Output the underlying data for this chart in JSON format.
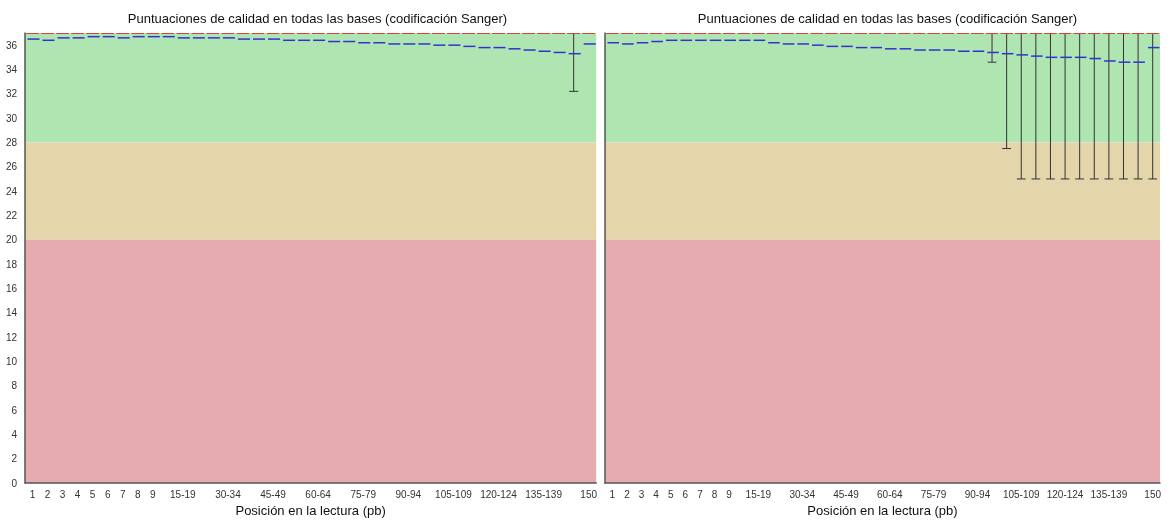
{
  "chart_data": [
    {
      "type": "box",
      "title": "Puntuaciones de calidad en todas las bases (codificación Sanger)",
      "xlabel": "Posición en la lectura (pb)",
      "categories": [
        "1",
        "2",
        "3",
        "4",
        "5",
        "6",
        "7",
        "8",
        "9",
        null,
        "15-19",
        null,
        null,
        "30-34",
        null,
        null,
        "45-49",
        null,
        null,
        "60-64",
        null,
        null,
        "75-79",
        null,
        null,
        "90-94",
        null,
        null,
        "105-109",
        null,
        null,
        "120-124",
        null,
        null,
        "135-139",
        null,
        null,
        "150"
      ],
      "ylim": [
        0,
        37
      ],
      "yticks": [
        0,
        2,
        4,
        6,
        8,
        10,
        12,
        14,
        16,
        18,
        20,
        22,
        24,
        26,
        28,
        30,
        32,
        34,
        36
      ],
      "grid": false,
      "bands": [
        {
          "axis": "y",
          "from": 28,
          "to": 37,
          "color": "#afe5b0"
        },
        {
          "axis": "y",
          "from": 20,
          "to": 28,
          "color": "#e5d5ab"
        },
        {
          "axis": "y",
          "from": 0,
          "to": 20,
          "color": "#e6abae"
        }
      ],
      "boxes": [
        {
          "low": 37,
          "q1": 37,
          "median": 37,
          "q3": 37,
          "high": 37,
          "mean": 36.5
        },
        {
          "low": 37,
          "q1": 37,
          "median": 37,
          "q3": 37,
          "high": 37,
          "mean": 36.4
        },
        {
          "low": 37,
          "q1": 37,
          "median": 37,
          "q3": 37,
          "high": 37,
          "mean": 36.6
        },
        {
          "low": 37,
          "q1": 37,
          "median": 37,
          "q3": 37,
          "high": 37,
          "mean": 36.6
        },
        {
          "low": 37,
          "q1": 37,
          "median": 37,
          "q3": 37,
          "high": 37,
          "mean": 36.7
        },
        {
          "low": 37,
          "q1": 37,
          "median": 37,
          "q3": 37,
          "high": 37,
          "mean": 36.7
        },
        {
          "low": 37,
          "q1": 37,
          "median": 37,
          "q3": 37,
          "high": 37,
          "mean": 36.6
        },
        {
          "low": 37,
          "q1": 37,
          "median": 37,
          "q3": 37,
          "high": 37,
          "mean": 36.7
        },
        {
          "low": 37,
          "q1": 37,
          "median": 37,
          "q3": 37,
          "high": 37,
          "mean": 36.7
        },
        {
          "low": 37,
          "q1": 37,
          "median": 37,
          "q3": 37,
          "high": 37,
          "mean": 36.7
        },
        {
          "low": 37,
          "q1": 37,
          "median": 37,
          "q3": 37,
          "high": 37,
          "mean": 36.6
        },
        {
          "low": 37,
          "q1": 37,
          "median": 37,
          "q3": 37,
          "high": 37,
          "mean": 36.6
        },
        {
          "low": 37,
          "q1": 37,
          "median": 37,
          "q3": 37,
          "high": 37,
          "mean": 36.6
        },
        {
          "low": 37,
          "q1": 37,
          "median": 37,
          "q3": 37,
          "high": 37,
          "mean": 36.6
        },
        {
          "low": 37,
          "q1": 37,
          "median": 37,
          "q3": 37,
          "high": 37,
          "mean": 36.5
        },
        {
          "low": 37,
          "q1": 37,
          "median": 37,
          "q3": 37,
          "high": 37,
          "mean": 36.5
        },
        {
          "low": 37,
          "q1": 37,
          "median": 37,
          "q3": 37,
          "high": 37,
          "mean": 36.5
        },
        {
          "low": 37,
          "q1": 37,
          "median": 37,
          "q3": 37,
          "high": 37,
          "mean": 36.4
        },
        {
          "low": 37,
          "q1": 37,
          "median": 37,
          "q3": 37,
          "high": 37,
          "mean": 36.4
        },
        {
          "low": 37,
          "q1": 37,
          "median": 37,
          "q3": 37,
          "high": 37,
          "mean": 36.4
        },
        {
          "low": 37,
          "q1": 37,
          "median": 37,
          "q3": 37,
          "high": 37,
          "mean": 36.3
        },
        {
          "low": 37,
          "q1": 37,
          "median": 37,
          "q3": 37,
          "high": 37,
          "mean": 36.3
        },
        {
          "low": 37,
          "q1": 37,
          "median": 37,
          "q3": 37,
          "high": 37,
          "mean": 36.2
        },
        {
          "low": 37,
          "q1": 37,
          "median": 37,
          "q3": 37,
          "high": 37,
          "mean": 36.2
        },
        {
          "low": 37,
          "q1": 37,
          "median": 37,
          "q3": 37,
          "high": 37,
          "mean": 36.1
        },
        {
          "low": 37,
          "q1": 37,
          "median": 37,
          "q3": 37,
          "high": 37,
          "mean": 36.1
        },
        {
          "low": 37,
          "q1": 37,
          "median": 37,
          "q3": 37,
          "high": 37,
          "mean": 36.1
        },
        {
          "low": 37,
          "q1": 37,
          "median": 37,
          "q3": 37,
          "high": 37,
          "mean": 36.0
        },
        {
          "low": 37,
          "q1": 37,
          "median": 37,
          "q3": 37,
          "high": 37,
          "mean": 36.0
        },
        {
          "low": 37,
          "q1": 37,
          "median": 37,
          "q3": 37,
          "high": 37,
          "mean": 35.9
        },
        {
          "low": 37,
          "q1": 37,
          "median": 37,
          "q3": 37,
          "high": 37,
          "mean": 35.8
        },
        {
          "low": 37,
          "q1": 37,
          "median": 37,
          "q3": 37,
          "high": 37,
          "mean": 35.8
        },
        {
          "low": 37,
          "q1": 37,
          "median": 37,
          "q3": 37,
          "high": 37,
          "mean": 35.7
        },
        {
          "low": 37,
          "q1": 37,
          "median": 37,
          "q3": 37,
          "high": 37,
          "mean": 35.6
        },
        {
          "low": 37,
          "q1": 37,
          "median": 37,
          "q3": 37,
          "high": 37,
          "mean": 35.5
        },
        {
          "low": 37,
          "q1": 37,
          "median": 37,
          "q3": 37,
          "high": 37,
          "mean": 35.4
        },
        {
          "low": 32.2,
          "q1": 37,
          "median": 37,
          "q3": 37,
          "high": 37,
          "mean": 35.3
        },
        {
          "low": 37,
          "q1": 37,
          "median": 37,
          "q3": 37,
          "high": 37,
          "mean": 36.1
        }
      ]
    },
    {
      "type": "box",
      "title": "Puntuaciones de calidad en todas las bases (codificación Sanger)",
      "xlabel": "Posición en la lectura (pb)",
      "categories": [
        "1",
        "2",
        "3",
        "4",
        "5",
        "6",
        "7",
        "8",
        "9",
        null,
        "15-19",
        null,
        null,
        "30-34",
        null,
        null,
        "45-49",
        null,
        null,
        "60-64",
        null,
        null,
        "75-79",
        null,
        null,
        "90-94",
        null,
        null,
        "105-109",
        null,
        null,
        "120-124",
        null,
        null,
        "135-139",
        null,
        null,
        "150"
      ],
      "ylim": [
        0,
        37
      ],
      "yticks": [
        0,
        2,
        4,
        6,
        8,
        10,
        12,
        14,
        16,
        18,
        20,
        22,
        24,
        26,
        28,
        30,
        32,
        34,
        36
      ],
      "grid": false,
      "tick_labels": "x",
      "bands": [
        {
          "axis": "y",
          "from": 28,
          "to": 37,
          "color": "#afe5b0"
        },
        {
          "axis": "y",
          "from": 20,
          "to": 28,
          "color": "#e5d5ab"
        },
        {
          "axis": "y",
          "from": 0,
          "to": 20,
          "color": "#e6abae"
        }
      ],
      "boxes": [
        {
          "low": 37,
          "q1": 37,
          "median": 37,
          "q3": 37,
          "high": 37,
          "mean": 36.2
        },
        {
          "low": 37,
          "q1": 37,
          "median": 37,
          "q3": 37,
          "high": 37,
          "mean": 36.1
        },
        {
          "low": 37,
          "q1": 37,
          "median": 37,
          "q3": 37,
          "high": 37,
          "mean": 36.2
        },
        {
          "low": 37,
          "q1": 37,
          "median": 37,
          "q3": 37,
          "high": 37,
          "mean": 36.3
        },
        {
          "low": 37,
          "q1": 37,
          "median": 37,
          "q3": 37,
          "high": 37,
          "mean": 36.4
        },
        {
          "low": 37,
          "q1": 37,
          "median": 37,
          "q3": 37,
          "high": 37,
          "mean": 36.4
        },
        {
          "low": 37,
          "q1": 37,
          "median": 37,
          "q3": 37,
          "high": 37,
          "mean": 36.4
        },
        {
          "low": 37,
          "q1": 37,
          "median": 37,
          "q3": 37,
          "high": 37,
          "mean": 36.4
        },
        {
          "low": 37,
          "q1": 37,
          "median": 37,
          "q3": 37,
          "high": 37,
          "mean": 36.4
        },
        {
          "low": 37,
          "q1": 37,
          "median": 37,
          "q3": 37,
          "high": 37,
          "mean": 36.4
        },
        {
          "low": 37,
          "q1": 37,
          "median": 37,
          "q3": 37,
          "high": 37,
          "mean": 36.4
        },
        {
          "low": 37,
          "q1": 37,
          "median": 37,
          "q3": 37,
          "high": 37,
          "mean": 36.2
        },
        {
          "low": 37,
          "q1": 37,
          "median": 37,
          "q3": 37,
          "high": 37,
          "mean": 36.1
        },
        {
          "low": 37,
          "q1": 37,
          "median": 37,
          "q3": 37,
          "high": 37,
          "mean": 36.1
        },
        {
          "low": 37,
          "q1": 37,
          "median": 37,
          "q3": 37,
          "high": 37,
          "mean": 36.0
        },
        {
          "low": 37,
          "q1": 37,
          "median": 37,
          "q3": 37,
          "high": 37,
          "mean": 35.9
        },
        {
          "low": 37,
          "q1": 37,
          "median": 37,
          "q3": 37,
          "high": 37,
          "mean": 35.9
        },
        {
          "low": 37,
          "q1": 37,
          "median": 37,
          "q3": 37,
          "high": 37,
          "mean": 35.8
        },
        {
          "low": 37,
          "q1": 37,
          "median": 37,
          "q3": 37,
          "high": 37,
          "mean": 35.8
        },
        {
          "low": 37,
          "q1": 37,
          "median": 37,
          "q3": 37,
          "high": 37,
          "mean": 35.7
        },
        {
          "low": 37,
          "q1": 37,
          "median": 37,
          "q3": 37,
          "high": 37,
          "mean": 35.7
        },
        {
          "low": 37,
          "q1": 37,
          "median": 37,
          "q3": 37,
          "high": 37,
          "mean": 35.6
        },
        {
          "low": 37,
          "q1": 37,
          "median": 37,
          "q3": 37,
          "high": 37,
          "mean": 35.6
        },
        {
          "low": 37,
          "q1": 37,
          "median": 37,
          "q3": 37,
          "high": 37,
          "mean": 35.6
        },
        {
          "low": 37,
          "q1": 37,
          "median": 37,
          "q3": 37,
          "high": 37,
          "mean": 35.5
        },
        {
          "low": 37,
          "q1": 37,
          "median": 37,
          "q3": 37,
          "high": 37,
          "mean": 35.5
        },
        {
          "low": 34.6,
          "q1": 37,
          "median": 37,
          "q3": 37,
          "high": 37,
          "mean": 35.4
        },
        {
          "low": 27.5,
          "q1": 37,
          "median": 37,
          "q3": 37,
          "high": 37,
          "mean": 35.3
        },
        {
          "low": 25,
          "q1": 37,
          "median": 37,
          "q3": 37,
          "high": 37,
          "mean": 35.2
        },
        {
          "low": 25,
          "q1": 37,
          "median": 37,
          "q3": 37,
          "high": 37,
          "mean": 35.1
        },
        {
          "low": 25,
          "q1": 37,
          "median": 37,
          "q3": 37,
          "high": 37,
          "mean": 35.0
        },
        {
          "low": 25,
          "q1": 37,
          "median": 37,
          "q3": 37,
          "high": 37,
          "mean": 35.0
        },
        {
          "low": 25,
          "q1": 37,
          "median": 37,
          "q3": 37,
          "high": 37,
          "mean": 35.0
        },
        {
          "low": 25,
          "q1": 37,
          "median": 37,
          "q3": 37,
          "high": 37,
          "mean": 34.9
        },
        {
          "low": 25,
          "q1": 37,
          "median": 37,
          "q3": 37,
          "high": 37,
          "mean": 34.7
        },
        {
          "low": 25,
          "q1": 37,
          "median": 37,
          "q3": 37,
          "high": 37,
          "mean": 34.6
        },
        {
          "low": 25,
          "q1": 37,
          "median": 37,
          "q3": 37,
          "high": 37,
          "mean": 34.6
        },
        {
          "low": 25,
          "q1": 37,
          "median": 37,
          "q3": 37,
          "high": 37,
          "mean": 35.8
        }
      ]
    }
  ]
}
